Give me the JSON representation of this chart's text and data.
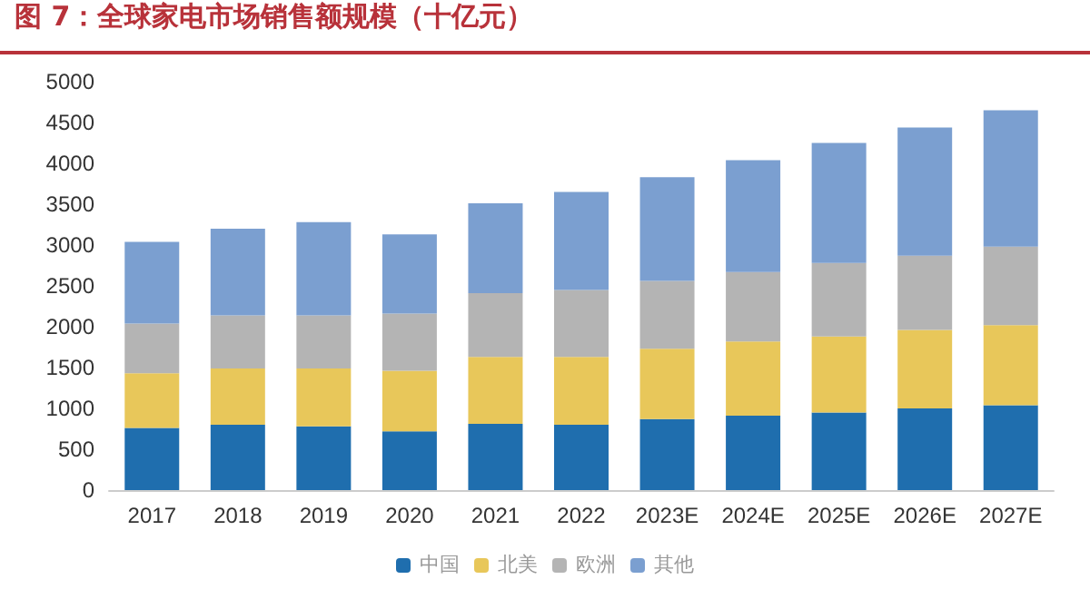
{
  "chart_data": {
    "type": "bar",
    "title": "图 7：全球家电市场销售额规模（十亿元）",
    "categories": [
      "2017",
      "2018",
      "2019",
      "2020",
      "2021",
      "2022",
      "2023E",
      "2024E",
      "2025E",
      "2026E",
      "2027E"
    ],
    "series": [
      {
        "name": "中国",
        "color": "#1f6eae",
        "values": [
          760,
          800,
          780,
          720,
          810,
          800,
          870,
          910,
          950,
          1000,
          1040
        ]
      },
      {
        "name": "北美",
        "color": "#e8c75a",
        "values": [
          670,
          690,
          710,
          740,
          820,
          830,
          860,
          910,
          930,
          960,
          980
        ]
      },
      {
        "name": "欧洲",
        "color": "#b4b4b4",
        "values": [
          610,
          650,
          650,
          700,
          780,
          820,
          830,
          850,
          900,
          910,
          960
        ]
      },
      {
        "name": "其他",
        "color": "#7b9fd0",
        "values": [
          1000,
          1060,
          1140,
          970,
          1100,
          1200,
          1270,
          1370,
          1470,
          1570,
          1670
        ]
      }
    ],
    "stacked": true,
    "ylim": [
      0,
      5000
    ],
    "yticks": [
      0,
      500,
      1000,
      1500,
      2000,
      2500,
      3000,
      3500,
      4000,
      4500,
      5000
    ],
    "grid": false,
    "legend": "bottom"
  }
}
